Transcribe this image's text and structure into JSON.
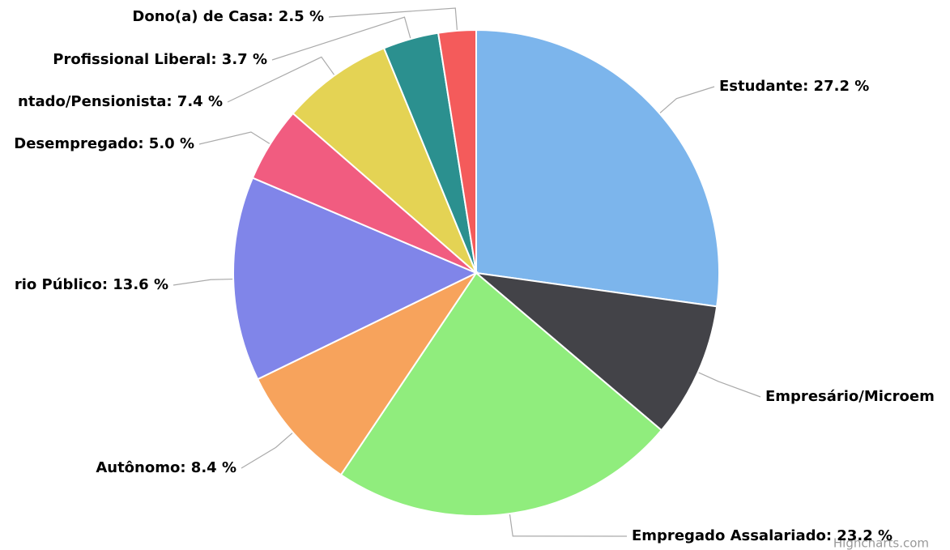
{
  "chart_data": {
    "type": "pie",
    "values": [
      27.2,
      9.0,
      23.2,
      8.4,
      13.6,
      5.0,
      7.4,
      3.7,
      2.5
    ],
    "value_labels": [
      "Estudante: 27.2 %",
      "Empresário/Microem",
      "Empregado Assalariado: 23.2 %",
      "Autônomo: 8.4 %",
      "rio Público: 13.6 %",
      "Desempregado: 5.0 %",
      "ntado/Pensionista: 7.4 %",
      "Profissional Liberal: 3.7 %",
      "Dono(a) de Casa: 2.5 %"
    ],
    "colors": [
      "#7cb5ec",
      "#434348",
      "#90ed7d",
      "#f7a35c",
      "#8085e9",
      "#f15c80",
      "#e4d354",
      "#2b908f",
      "#f45b5b"
    ],
    "credits": "Highcharts.com"
  }
}
